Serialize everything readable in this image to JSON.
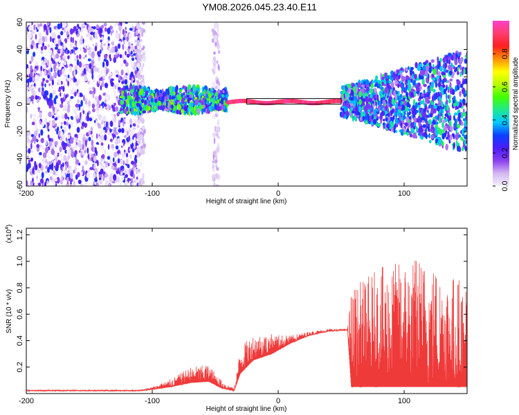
{
  "title": "YM08.2026.045.23.40.E11",
  "chart_data": [
    {
      "type": "heatmap",
      "title": "YM08.2026.045.23.40.E11",
      "xlabel": "Height of straight line (km)",
      "ylabel": "Frequency (Hz)",
      "xlim": [
        -200,
        150
      ],
      "ylim": [
        -60,
        60
      ],
      "x_ticks": [
        -200,
        -100,
        0,
        100
      ],
      "y_ticks": [
        -60,
        -40,
        -20,
        0,
        20,
        40,
        60
      ],
      "colorbar": {
        "label": "Normalized spectral amplitude",
        "range": [
          0.0,
          1.0
        ],
        "ticks": [
          0.0,
          0.2,
          0.4,
          0.6,
          0.8
        ],
        "colors": [
          "#f4f0fb",
          "#d3b8f2",
          "#8a3ff0",
          "#4a1cff",
          "#0a40ff",
          "#00c8ff",
          "#20e890",
          "#40ff00",
          "#b8ff00",
          "#ffff00",
          "#ff9000",
          "#ff2020",
          "#ff3c6e",
          "#ff40c8"
        ]
      },
      "regions": [
        {
          "name": "scattered noise",
          "x": [
            -200,
            -125
          ],
          "amplitude": [
            0.0,
            0.3
          ]
        },
        {
          "name": "dense band",
          "x": [
            -125,
            -40
          ],
          "freq": [
            -10,
            10
          ],
          "amplitude": [
            0.1,
            0.6
          ]
        },
        {
          "name": "tonal line",
          "x": [
            -40,
            50
          ],
          "freq": [
            0,
            3
          ],
          "amplitude": [
            0.85,
            1.0
          ]
        },
        {
          "name": "broadband",
          "x": [
            50,
            150
          ],
          "freq": [
            -40,
            40
          ],
          "amplitude": [
            0.1,
            0.5
          ]
        }
      ]
    },
    {
      "type": "line",
      "xlabel": "Height of straight line (km)",
      "ylabel": "SNR (10 * v/v)",
      "y_multiplier": "(x10",
      "y_multiplier_exp": "4",
      "y_multiplier_close": ")",
      "xlim": [
        -200,
        150
      ],
      "ylim": [
        0.0,
        1.25
      ],
      "x_ticks": [
        -200,
        -100,
        0,
        100
      ],
      "y_ticks": [
        0.2,
        0.4,
        0.6,
        0.8,
        1.0,
        1.2
      ],
      "series": [
        {
          "name": "SNR",
          "color": "#ef3a3a",
          "envelope": [
            {
              "x": -200,
              "base": 0.02,
              "spread": 0.01
            },
            {
              "x": -110,
              "base": 0.02,
              "spread": 0.01
            },
            {
              "x": -100,
              "base": 0.03,
              "spread": 0.02
            },
            {
              "x": -85,
              "base": 0.05,
              "spread": 0.06
            },
            {
              "x": -70,
              "base": 0.08,
              "spread": 0.12
            },
            {
              "x": -55,
              "base": 0.09,
              "spread": 0.13
            },
            {
              "x": -45,
              "base": 0.04,
              "spread": 0.06
            },
            {
              "x": -35,
              "base": 0.02,
              "spread": 0.02
            },
            {
              "x": -30,
              "base": 0.15,
              "spread": 0.2
            },
            {
              "x": -20,
              "base": 0.25,
              "spread": 0.2
            },
            {
              "x": -5,
              "base": 0.3,
              "spread": 0.15
            },
            {
              "x": 10,
              "base": 0.38,
              "spread": 0.06
            },
            {
              "x": 25,
              "base": 0.44,
              "spread": 0.03
            },
            {
              "x": 40,
              "base": 0.47,
              "spread": 0.02
            },
            {
              "x": 55,
              "base": 0.48,
              "spread": 0.01
            },
            {
              "x": 58,
              "base": 0.05,
              "spread": 0.75
            },
            {
              "x": 80,
              "base": 0.05,
              "spread": 0.9
            },
            {
              "x": 110,
              "base": 0.05,
              "spread": 1.0
            },
            {
              "x": 150,
              "base": 0.05,
              "spread": 0.8
            }
          ]
        }
      ]
    }
  ]
}
